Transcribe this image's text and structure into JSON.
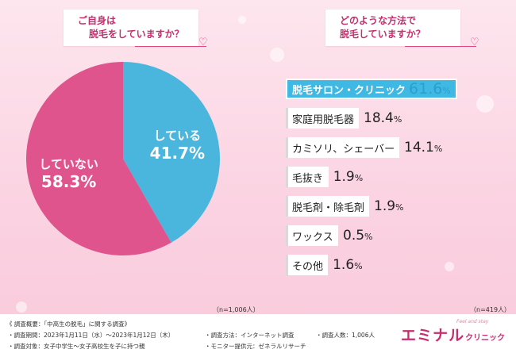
{
  "left": {
    "question_lines": [
      "ご自身は",
      "脱毛をしていますか？"
    ],
    "n_note": "（n=1,006人）"
  },
  "right": {
    "question_lines": [
      "どのような方法で",
      "脱毛していますか？"
    ],
    "n_note": "（n=419人）"
  },
  "chart_data": [
    {
      "type": "pie",
      "categories": [
        "している",
        "していない"
      ],
      "values": [
        41.7,
        58.3
      ],
      "value_labels": [
        "41.7%",
        "58.3%"
      ],
      "colors": [
        "#4ab6dd",
        "#e0548e"
      ],
      "title": "ご自身は 脱毛をしていますか？"
    },
    {
      "type": "bar",
      "categories": [
        "脱毛サロン・クリニック",
        "家庭用脱毛器",
        "カミソリ、シェーバー",
        "毛抜き",
        "脱毛剤・除毛剤",
        "ワックス",
        "その他"
      ],
      "values": [
        61.6,
        18.4,
        14.1,
        1.9,
        1.9,
        0.5,
        1.6
      ],
      "title": "どのような方法で 脱毛していますか？",
      "highlight_color": "#3fb8e3"
    }
  ],
  "footer": {
    "summary": "《 調査概要：「中高生の脱毛」に関する調査》",
    "period": "・調査期間：2023年1月11日（水）〜2023年1月12日（木）",
    "method": "・調査方法：インターネット調査",
    "count": "・調査人数：1,006人",
    "target": "・調査対象：女子中学生〜女子高校生を子に持つ親",
    "provider": "・モニター提供元：ゼネラルリサーチ"
  },
  "brand": {
    "name": "エミナル",
    "sub": "クリニック",
    "small": "Feel and stay"
  }
}
